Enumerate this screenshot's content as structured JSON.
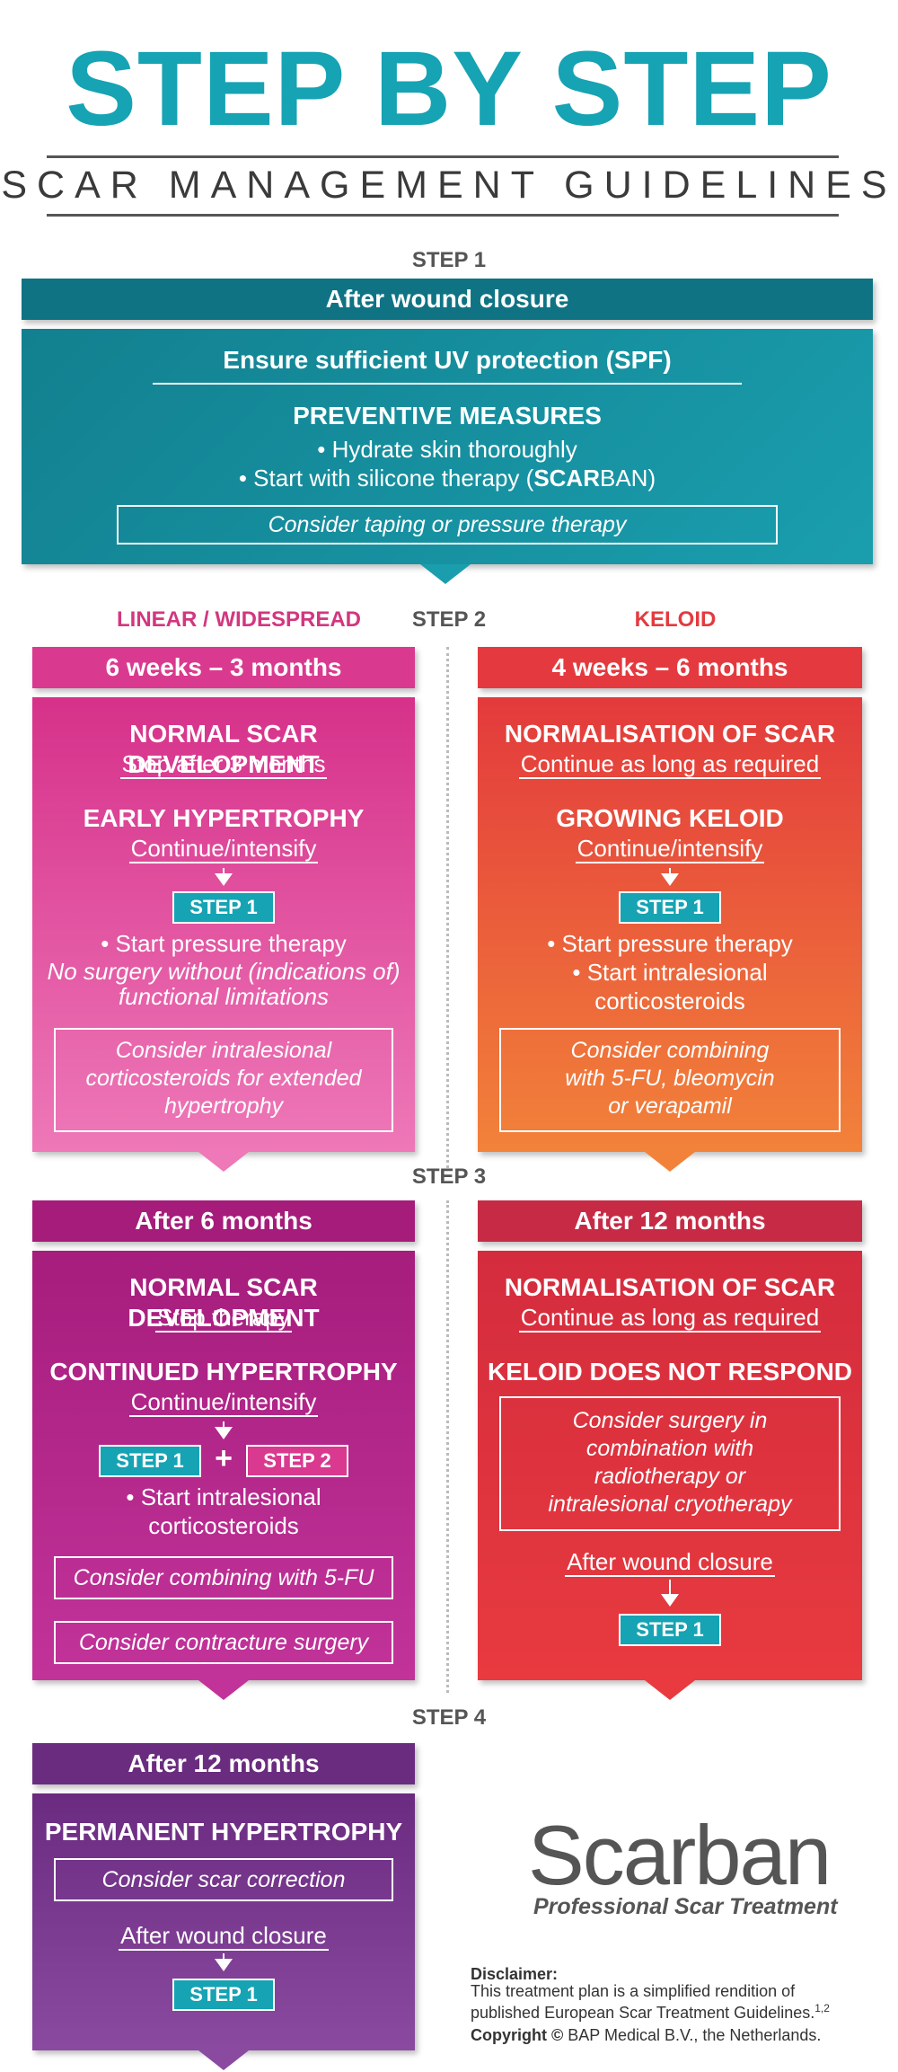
{
  "header": {
    "title": "STEP BY STEP",
    "subtitle": "SCAR MANAGEMENT GUIDELINES"
  },
  "step1": {
    "label": "STEP 1",
    "bar": "After wound closure",
    "uv": "Ensure sufficient UV protection (SPF)",
    "preventive_title": "PREVENTIVE MEASURES",
    "bullet1": "• Hydrate skin thoroughly",
    "bullet2_prefix": "• Start with silicone therapy  (",
    "bullet2_brand_bold": "SCAR",
    "bullet2_brand_rest": "BAN",
    "bullet2_suffix": ")",
    "box": "Consider taping or pressure therapy"
  },
  "step2": {
    "label": "STEP 2",
    "left_head": "LINEAR / WIDESPREAD",
    "right_head": "KELOID",
    "left": {
      "bar": "6 weeks – 3 months",
      "h1": "NORMAL SCAR DEVELOPMENT",
      "u1": "Stop after 3 months",
      "h2": "EARLY HYPERTROPHY",
      "u2": "Continue/intensify",
      "step_btn": "STEP 1",
      "bullet": "• Start pressure therapy",
      "italic1": "No surgery without (indications of)",
      "italic2": "functional limitations",
      "box1": "Consider intralesional",
      "box2": "corticosteroids for extended",
      "box3": "hypertrophy"
    },
    "right": {
      "bar": "4 weeks – 6 months",
      "h1": "NORMALISATION OF SCAR",
      "u1": "Continue as long as required",
      "h2": "GROWING KELOID",
      "u2": "Continue/intensify",
      "step_btn": "STEP 1",
      "bullet1": "• Start pressure therapy",
      "bullet2": "• Start intralesional",
      "bullet3": "corticosteroids",
      "box1": "Consider combining",
      "box2": "with 5-FU, bleomycin",
      "box3": "or verapamil"
    }
  },
  "step3": {
    "label": "STEP 3",
    "left": {
      "bar": "After 6 months",
      "h1": "NORMAL SCAR DEVELOPMENT",
      "u1": "Stop therapy",
      "h2": "CONTINUED HYPERTROPHY",
      "u2": "Continue/intensify",
      "step_btn1": "STEP 1",
      "plus": "+",
      "step_btn2": "STEP 2",
      "bullet1": "• Start intralesional",
      "bullet2": "corticosteroids",
      "box1": "Consider combining with 5-FU",
      "box2": "Consider contracture surgery"
    },
    "right": {
      "bar": "After 12 months",
      "h1": "NORMALISATION OF SCAR",
      "u1": "Continue as long as required",
      "h2": "KELOID DOES NOT RESPOND",
      "box1": "Consider surgery in",
      "box2": "combination with",
      "box3": "radiotherapy or",
      "box4": "intralesional cryotherapy",
      "u2": "After wound closure",
      "step_btn": "STEP 1"
    }
  },
  "step4": {
    "label": "STEP 4",
    "bar": "After 12 months",
    "h1": "PERMANENT HYPERTROPHY",
    "box": "Consider scar correction",
    "u1": "After wound closure",
    "step_btn": "STEP 1"
  },
  "brand": {
    "logo": "Scarban",
    "tagline": "Professional Scar Treatment"
  },
  "disclaimer": {
    "title": "Disclaimer:",
    "line1": "This treatment plan is a simplified rendition of",
    "line2": "published European Scar Treatment Guidelines.",
    "sup": "1,2",
    "copyright_label": "Copyright ©",
    "copyright_text": " BAP Medical B.V., the Netherlands."
  },
  "colors": {
    "teal": "#16a3b3",
    "teal_dark": "#0f7384",
    "pink": "#d93a8f",
    "red": "#e43a3f",
    "orange": "#ee7a3a",
    "magenta": "#a51c7a",
    "crimson": "#c72a45",
    "purple": "#6a2c7f"
  }
}
